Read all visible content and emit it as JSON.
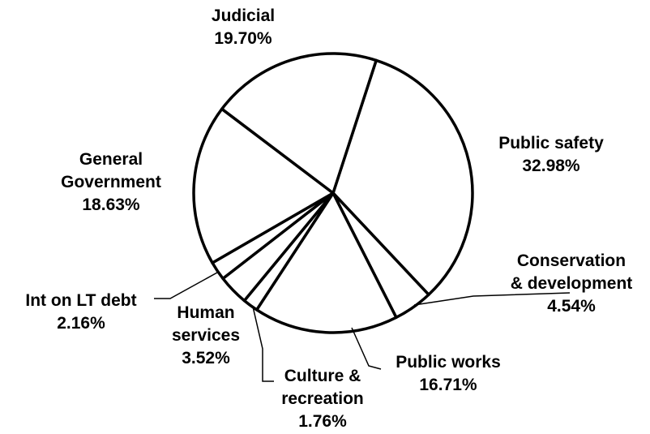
{
  "chart_data": {
    "type": "pie",
    "title": "",
    "legend": "none",
    "slices": [
      {
        "label": [
          "Public safety"
        ],
        "value": 32.98,
        "value_label": "32.98%"
      },
      {
        "label": [
          "Conservation",
          "& development"
        ],
        "value": 4.54,
        "value_label": "4.54%"
      },
      {
        "label": [
          "Public works"
        ],
        "value": 16.71,
        "value_label": "16.71%"
      },
      {
        "label": [
          "Culture &",
          "recreation"
        ],
        "value": 1.76,
        "value_label": "1.76%"
      },
      {
        "label": [
          "Human",
          "services"
        ],
        "value": 3.52,
        "value_label": "3.52%"
      },
      {
        "label": [
          "Int on LT debt"
        ],
        "value": 2.16,
        "value_label": "2.16%"
      },
      {
        "label": [
          "General",
          "Government"
        ],
        "value": 18.63,
        "value_label": "18.63%"
      },
      {
        "label": [
          "Judicial"
        ],
        "value": 19.7,
        "value_label": "19.70%"
      }
    ],
    "colors": {
      "fill": "#ffffff",
      "stroke": "#000000",
      "text": "#000000"
    }
  }
}
